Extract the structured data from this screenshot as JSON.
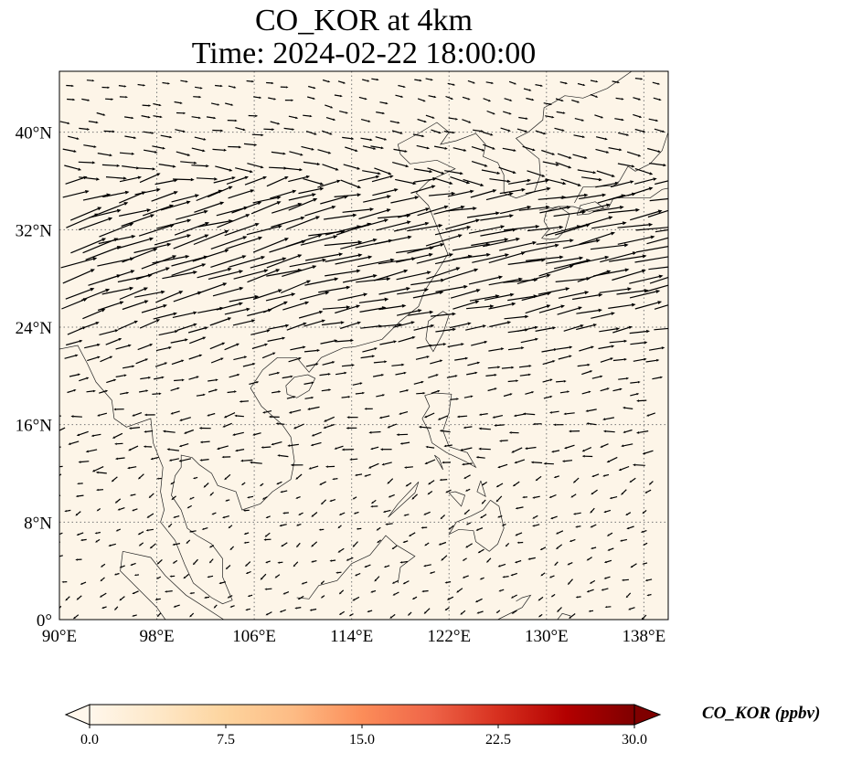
{
  "title": {
    "line1": "CO_KOR at 4km",
    "line2": "Time: 2024-02-22 18:00:00"
  },
  "map": {
    "extent": {
      "lon": [
        90,
        140
      ],
      "lat": [
        0,
        45
      ]
    },
    "background_color": "#fdf5e8",
    "gridlines": "dotted",
    "lon_ticks": [
      {
        "value": 90,
        "label": "90°E"
      },
      {
        "value": 98,
        "label": "98°E"
      },
      {
        "value": 106,
        "label": "106°E"
      },
      {
        "value": 114,
        "label": "114°E"
      },
      {
        "value": 122,
        "label": "122°E"
      },
      {
        "value": 130,
        "label": "130°E"
      },
      {
        "value": 138,
        "label": "138°E"
      }
    ],
    "lat_ticks": [
      {
        "value": 0,
        "label": "0°"
      },
      {
        "value": 8,
        "label": "8°N"
      },
      {
        "value": 16,
        "label": "16°N"
      },
      {
        "value": 24,
        "label": "24°N"
      },
      {
        "value": 32,
        "label": "32°N"
      },
      {
        "value": 40,
        "label": "40°N"
      }
    ],
    "wind_vectors": "quiver arrows; strong westerly jet 20°N–38°N, weaker and variable flow in the tropics"
  },
  "colorbar": {
    "label": "CO_KOR (ppbv)",
    "min": 0.0,
    "max": 30.0,
    "ticks": [
      "0.0",
      "7.5",
      "15.0",
      "22.5",
      "30.0"
    ],
    "colormap": "OrRd",
    "colors": [
      "#fff7ec",
      "#fee8c8",
      "#fdd49e",
      "#fdbb84",
      "#fc8d59",
      "#ef6548",
      "#d7301f",
      "#b30000",
      "#7f0000"
    ],
    "extend": "both"
  }
}
